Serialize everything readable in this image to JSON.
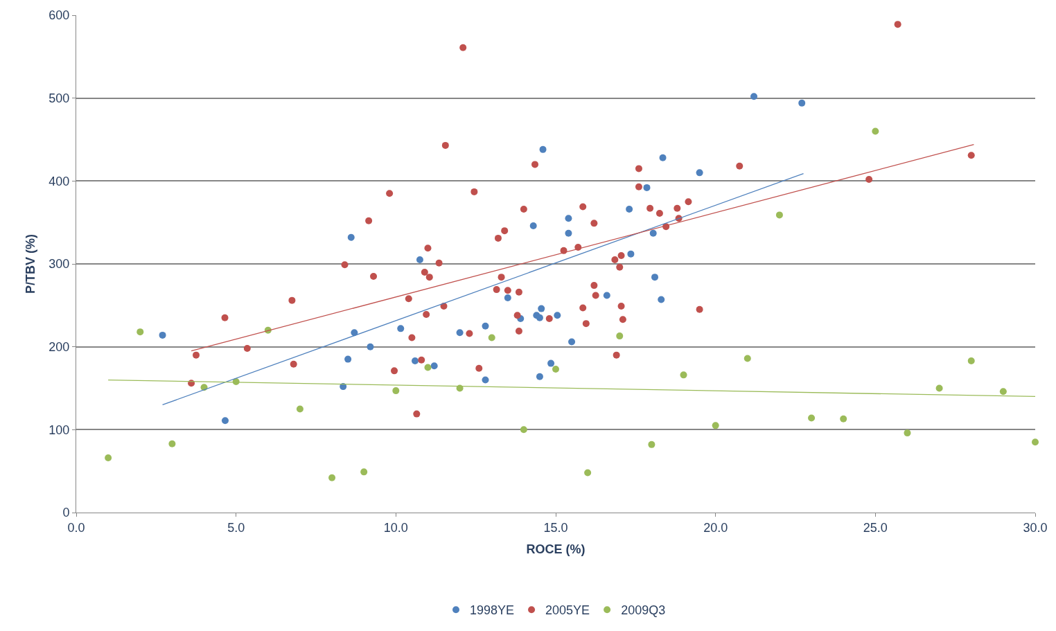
{
  "chart_data": {
    "type": "scatter",
    "xlabel": "ROCE (%)",
    "ylabel": "P/TBV (%)",
    "xlim": [
      0,
      30
    ],
    "xticks": [
      {
        "value": 0,
        "label": "0.0"
      },
      {
        "value": 5,
        "label": "5.0"
      },
      {
        "value": 10,
        "label": "10.0"
      },
      {
        "value": 15,
        "label": "15.0"
      },
      {
        "value": 20,
        "label": "20.0"
      },
      {
        "value": 25,
        "label": "25.0"
      },
      {
        "value": 30,
        "label": "30.0"
      }
    ],
    "ylim": [
      0,
      600
    ],
    "yticks": [
      0,
      100,
      200,
      300,
      400,
      500,
      600
    ],
    "grid": "y",
    "legend": "bottom",
    "marker": "circle",
    "series": [
      {
        "name": "1998YE",
        "color": "#4f81bd",
        "x": [
          2.7,
          4.66,
          8.6,
          8.7,
          8.5,
          8.35,
          9.2,
          10.15,
          10.75,
          10.6,
          11.2,
          12.0,
          12.8,
          12.8,
          13.5,
          13.9,
          14.3,
          14.6,
          14.55,
          14.4,
          14.5,
          14.5,
          14.85,
          15.05,
          15.4,
          15.4,
          15.5,
          16.6,
          17.3,
          17.35,
          17.85,
          18.05,
          18.1,
          18.35,
          18.3,
          19.5,
          21.2,
          22.7
        ],
        "values": [
          214,
          111,
          332,
          217,
          185,
          152,
          200,
          222,
          305,
          183,
          177,
          217,
          225,
          160,
          259,
          234,
          346,
          438,
          246,
          238,
          235,
          164,
          180,
          238,
          355,
          337,
          206,
          262,
          366,
          312,
          392,
          337,
          284,
          428,
          257,
          410,
          502,
          494
        ]
      },
      {
        "name": "2005YE",
        "color": "#c0504d",
        "x": [
          3.6,
          3.75,
          4.65,
          5.35,
          6.75,
          6.8,
          8.4,
          9.15,
          9.3,
          9.8,
          9.95,
          10.4,
          10.5,
          10.65,
          10.8,
          10.9,
          11.0,
          10.95,
          11.05,
          11.35,
          11.5,
          11.55,
          12.1,
          12.3,
          12.45,
          12.6,
          13.15,
          13.2,
          13.4,
          13.3,
          13.5,
          13.8,
          13.85,
          13.85,
          14.0,
          14.35,
          14.8,
          15.25,
          15.7,
          15.85,
          15.85,
          15.95,
          16.2,
          16.2,
          16.25,
          16.85,
          16.9,
          17.05,
          17.0,
          17.05,
          17.1,
          17.6,
          17.6,
          17.95,
          18.25,
          18.45,
          18.8,
          18.85,
          19.15,
          19.5,
          20.75,
          24.8,
          25.7,
          28.0
        ],
        "values": [
          156,
          190,
          235,
          198,
          256,
          179,
          299,
          352,
          285,
          385,
          171,
          258,
          211,
          119,
          184,
          290,
          319,
          239,
          284,
          301,
          249,
          443,
          561,
          216,
          387,
          174,
          269,
          331,
          340,
          284,
          268,
          238,
          219,
          266,
          366,
          420,
          234,
          316,
          320,
          369,
          247,
          228,
          349,
          274,
          262,
          305,
          190,
          310,
          296,
          249,
          233,
          415,
          393,
          367,
          361,
          345,
          367,
          355,
          375,
          245,
          418,
          402,
          589,
          431
        ]
      },
      {
        "name": "2009Q3",
        "color": "#9bbb59",
        "x": [
          1,
          2,
          3,
          4,
          5,
          6,
          7,
          8,
          9,
          10,
          11,
          12,
          13,
          14,
          15,
          16,
          17,
          18,
          19,
          20,
          21,
          22,
          23,
          24,
          25,
          26,
          27,
          28,
          29,
          30
        ],
        "values": [
          66,
          218,
          83,
          151,
          158,
          220,
          125,
          42,
          49,
          147,
          175,
          150,
          211,
          100,
          173,
          48,
          213,
          82,
          166,
          105,
          186,
          359,
          114,
          113,
          460,
          96,
          150,
          183,
          146,
          85
        ]
      },
      {
        "type": "line",
        "color": "#4f81bd",
        "marker": "none",
        "x": [
          2.7,
          22.75
        ],
        "values": [
          130,
          409
        ]
      },
      {
        "type": "line",
        "color": "#c0504d",
        "marker": "none",
        "x": [
          3.6,
          28.08
        ],
        "values": [
          195,
          444
        ]
      },
      {
        "type": "line",
        "color": "#9bbb59",
        "marker": "none",
        "x": [
          1,
          30
        ],
        "values": [
          160,
          140
        ]
      }
    ]
  }
}
